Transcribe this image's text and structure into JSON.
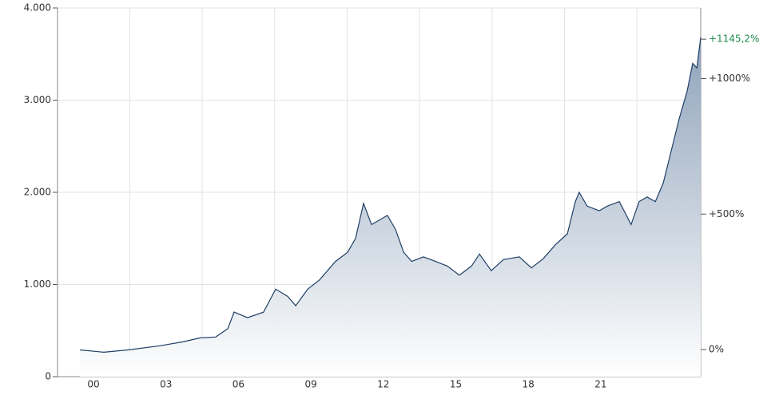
{
  "chart_data": {
    "type": "area",
    "x": [
      1999.44,
      2000.43,
      2001.42,
      2002.75,
      2003.74,
      2004.4,
      2005.06,
      2005.56,
      2005.82,
      2006.38,
      2007.04,
      2007.54,
      2008.04,
      2008.37,
      2008.87,
      2009.36,
      2010.02,
      2010.52,
      2010.85,
      2011.18,
      2011.51,
      2011.84,
      2012.17,
      2012.5,
      2012.84,
      2013.17,
      2013.66,
      2014.16,
      2014.65,
      2015.15,
      2015.65,
      2015.98,
      2016.47,
      2016.97,
      2017.63,
      2018.13,
      2018.62,
      2019.12,
      2019.62,
      2019.95,
      2020.11,
      2020.44,
      2020.94,
      2021.27,
      2021.77,
      2022.26,
      2022.59,
      2022.92,
      2023.26,
      2023.59,
      2023.92,
      2024.25,
      2024.58,
      2024.81,
      2024.98,
      2025.14
    ],
    "series": [
      {
        "color": "#1f3f66",
        "values": [
          290,
          265,
          290,
          335,
          380,
          420,
          430,
          520,
          700,
          640,
          700,
          950,
          870,
          770,
          950,
          1050,
          1250,
          1350,
          1500,
          1880,
          1650,
          1700,
          1750,
          1600,
          1350,
          1250,
          1300,
          1250,
          1200,
          1100,
          1200,
          1330,
          1150,
          1270,
          1300,
          1180,
          1280,
          1430,
          1550,
          1900,
          2000,
          1850,
          1800,
          1850,
          1900,
          1650,
          1900,
          1950,
          1900,
          2100,
          2450,
          2800,
          3100,
          3400,
          3350,
          3680
        ]
      }
    ],
    "xlim": [
      1998.51,
      2025.14
    ],
    "xticks": [
      {
        "value": 2000,
        "label": "00"
      },
      {
        "value": 2003,
        "label": "03"
      },
      {
        "value": 2006,
        "label": "06"
      },
      {
        "value": 2009,
        "label": "09"
      },
      {
        "value": 2012,
        "label": "12"
      },
      {
        "value": 2015,
        "label": "15"
      },
      {
        "value": 2018,
        "label": "18"
      },
      {
        "value": 2021,
        "label": "21"
      }
    ],
    "ylim": [
      0,
      4000
    ],
    "yticks": [
      0,
      {
        "value": 1000,
        "label": "1.000"
      },
      {
        "value": 2000,
        "label": "2.000"
      },
      {
        "value": 3000,
        "label": "3.000"
      },
      {
        "value": 4000,
        "label": "4.000"
      }
    ],
    "y2lim": [
      -100,
      1260.5
    ],
    "y2ticks": [
      {
        "value": 0,
        "label": "0%"
      },
      {
        "value": 500,
        "label": "+500%"
      },
      {
        "value": 1000,
        "label": "+1000%"
      },
      {
        "value": 1145.2,
        "label": "+1145,2%",
        "color": "#1a8a4a"
      }
    ],
    "grid": true
  }
}
